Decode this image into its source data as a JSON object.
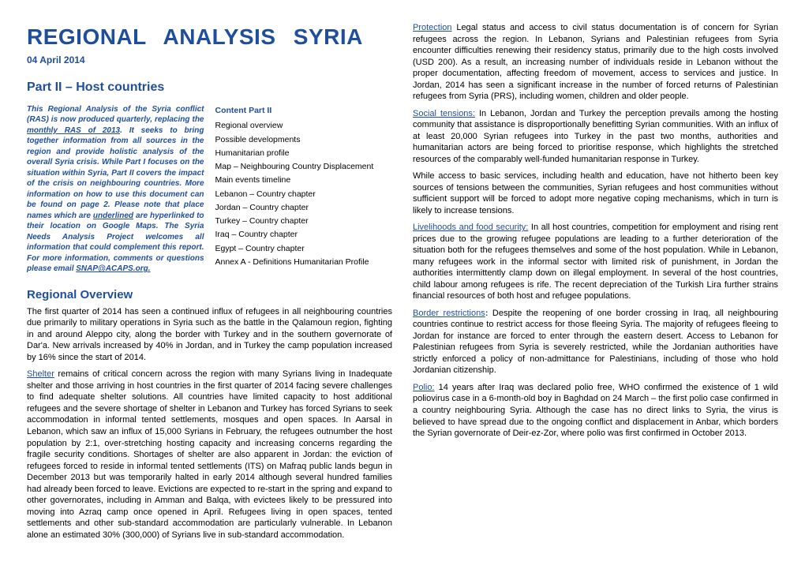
{
  "colors": {
    "accent": "#1f4e9c",
    "text": "#000000",
    "background": "#ffffff"
  },
  "typography": {
    "font_family": "Arial",
    "title_size_pt": 28,
    "subtitle_size_pt": 16,
    "section_head_size_pt": 15,
    "body_size_pt": 11,
    "intro_size_pt": 10
  },
  "title": "REGIONAL ANALYSIS SYRIA",
  "date": "04 April 2014",
  "subtitle": "Part II – Host countries",
  "intro": "This Regional Analysis of the Syria conflict (RAS) is now produced quarterly, replacing the monthly RAS of 2013. It seeks to bring together information from all sources in the region and provide holistic analysis of the overall Syria crisis. While Part I focuses on the situation within Syria, Part II covers the impact of the crisis on neighbouring countries. More information on how to use this document can be found on page 2. Please note that place names which are underlined are hyperlinked to their location on Google Maps. The Syria Needs Analysis Project welcomes all information that could complement this report. For more information, comments or questions please email SNAP@ACAPS.org.",
  "intro_underline_1": "monthly RAS of 2013",
  "intro_underline_2": "underlined",
  "intro_underline_3": "SNAP@ACAPS.org.",
  "toc_head": "Content Part II",
  "toc": [
    "Regional overview",
    "Possible developments",
    "Humanitarian profile",
    "Map – Neighbouring Country Displacement",
    "Main events timeline",
    "Lebanon – Country chapter",
    "Jordan – Country chapter",
    "Turkey – Country chapter",
    "Iraq – Country chapter",
    "Egypt  – Country chapter",
    "Annex A - Definitions Humanitarian Profile"
  ],
  "section_head": "Regional Overview",
  "p1": "The first quarter of 2014 has seen a continued influx of refugees in all neighbouring countries due primarily to military operations in Syria such as the battle in the Qalamoun region, fighting in and around Aleppo city, along the border with Turkey and in the southern governorate of Dar'a. New arrivals increased by 40% in Jordan, and in Turkey the camp population increased by 16% since the start of 2014.",
  "p2_lead": "Shelter",
  "p2": " remains of critical concern across the region with many Syrians living in Inadequate shelter and those arriving in host countries in the first quarter of 2014 facing severe challenges to find adequate shelter solutions. All countries have limited capacity to host additional refugees and the severe shortage of shelter in Lebanon and Turkey has forced Syrians to seek accommodation in informal tented settlements, mosques and open spaces. In Aarsal in Lebanon, which saw an influx of 15,000 Syrians in February, the refugees outnumber the host population by 2:1, over-stretching hosting capacity and increasing concerns regarding the fragile security conditions. Shortages of shelter are also apparent in Jordan: the eviction of refugees forced to reside in informal tented settlements (ITS) on Mafraq public lands begun in December 2013 but was temporarily halted in early 2014 although several hundred families had already been forced to leave.  Evictions are expected to re-start in the spring and expand to other governorates, including in Amman and Balqa, with evictees likely to be pressured into moving into Azraq camp once opened in April. Refugees living in open spaces, tented settlements and other sub-standard accommodation are particularly vulnerable. In Lebanon alone an estimated 30% (300,000) of Syrians live in sub-standard accommodation.",
  "p3_lead": "Protection",
  "p3": " Legal status and access to civil status documentation is of concern for Syrian refugees across the region. In Lebanon, Syrians and Palestinian refugees from Syria encounter difficulties renewing their residency status, primarily due to the high costs involved (USD 200). As a result, an increasing number of individuals reside in Lebanon without the proper documentation, affecting freedom of movement, access to services and justice. In Jordan, 2014 has seen a significant increase in the number of forced returns of Palestinian refugees from Syria (PRS), including women, children and older people.",
  "p4_lead": "Social tensions:",
  "p4": " In Lebanon, Jordan and Turkey the perception prevails among the hosting community that assistance is disproportionally benefitting Syrian communities. With an influx of at least 20,000 Syrian refugees into Turkey in the past two months, authorities and humanitarian actors are being forced to prioritise response, which highlights the stretched resources of the comparably well-funded humanitarian response in Turkey.",
  "p5": "While access to basic services, including health and education, have not hitherto been key sources of tensions between the communities, Syrian refugees and host communities without sufficient support will be forced to adopt more negative coping mechanisms, which in turn is likely to increase tensions.",
  "p6_lead": "Livelihoods and food security:",
  "p6": " In all host countries, competition for employment and rising rent prices due to the growing refugee populations are leading to a further deterioration of the situation both for the refugees themselves and some of the host population. While in Lebanon, many refugees work in the informal sector with limited risk of punishment, in Jordan the authorities intermittently clamp down on illegal employment. In several of the host countries, child labour among refugees is rife. The recent depreciation of the Turkish Lira further strains financial resources of both host and refugee populations.",
  "p7_lead": "Border restrictions",
  "p7_colon": ":",
  "p7": " Despite the reopening of one border crossing in Iraq, all neighbouring countries continue to restrict access for those fleeing Syria. The majority of refugees fleeing to Jordan for instance are forced to enter through the eastern desert. Access to Lebanon for Palestinian refugees from Syria is severely restricted, while the Jordanian authorities have strictly enforced a policy of non-admittance for Palestinians, including of those who hold Jordanian citizenship.",
  "p8_lead": "Polio:",
  "p8": " 14 years after Iraq was declared polio free, WHO confirmed the existence of 1 wild poliovirus case in a 6-month-old boy in Baghdad on 24 March – the first polio case confirmed in a country neighbouring Syria. Although the case has no direct links to Syria, the virus is believed to have spread due to the ongoing conflict and displacement in Anbar, which borders the Syrian governorate of Deir-ez-Zor, where polio was first confirmed in October 2013."
}
